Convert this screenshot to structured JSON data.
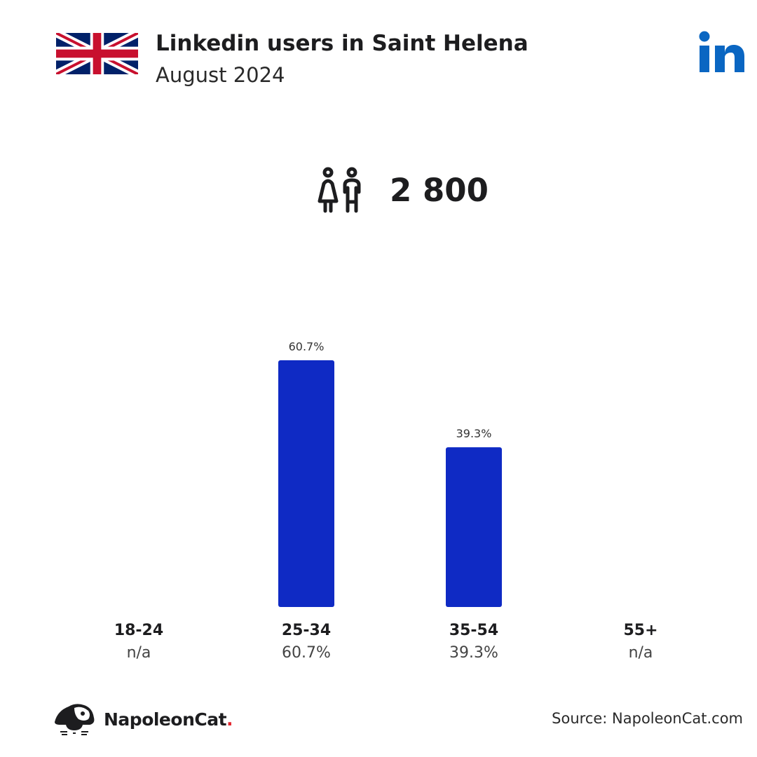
{
  "header": {
    "title": "Linkedin users in Saint Helena",
    "subtitle": "August 2024",
    "flag_icon": "union-jack-flag-icon",
    "brand_icon": "linkedin-logo-icon"
  },
  "summary": {
    "total_users": "2 800",
    "icon": "people-icon"
  },
  "chart_data": {
    "type": "bar",
    "categories": [
      "18-24",
      "25-34",
      "35-54",
      "55+"
    ],
    "values": [
      null,
      60.7,
      39.3,
      null
    ],
    "value_labels": [
      "n/a",
      "60.7%",
      "39.3%",
      "n/a"
    ],
    "bar_labels": [
      "",
      "60.7%",
      "39.3%",
      ""
    ],
    "title": "Linkedin users in Saint Helena",
    "xlabel": "",
    "ylabel": "",
    "ylim": [
      0,
      60.7
    ],
    "grid": false,
    "bar_color": "#0f2ac4"
  },
  "footer": {
    "brand_name": "NapoleonCat",
    "brand_dot": ".",
    "source": "Source: NapoleonCat.com",
    "logo_icon": "napoleoncat-logo-icon"
  },
  "colors": {
    "bar": "#0f2ac4",
    "linkedin": "#0a66c2",
    "text": "#1d1d1f",
    "accent_dot": "#e3262f"
  }
}
